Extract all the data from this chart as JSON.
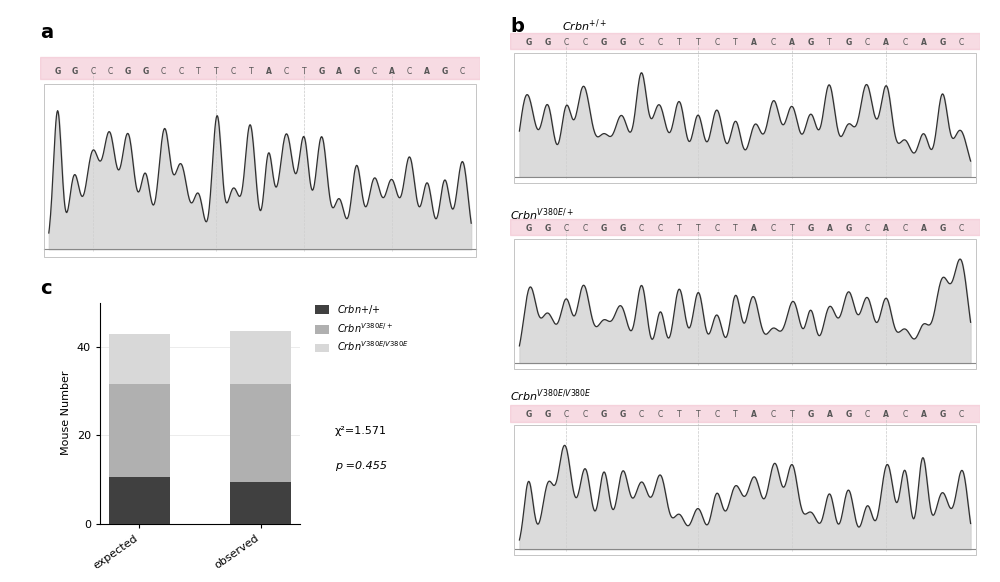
{
  "panel_a_sequence": "G G C C G G C C T T C T A C T G A G C A C A G C",
  "panel_b1_sequence": "G G C C G G C C T T C T A C A G T G C A C A G C",
  "panel_b2_sequence": "G G C C G G C C T T C T A C T G A G C A C A G C",
  "panel_b3_sequence": "G G C C G G C C T T C T A C T G A G C A C A G C",
  "bar_categories": [
    "expected",
    "observed"
  ],
  "bar_crbnpp": [
    10.5,
    9.5
  ],
  "bar_crbnhe": [
    21.0,
    22.0
  ],
  "bar_crbnhomo": [
    11.5,
    12.0
  ],
  "color_crbnpp": "#404040",
  "color_crbnhe": "#b0b0b0",
  "color_crbnhomo": "#d8d8d8",
  "ylabel": "Mouse Number",
  "chi2_text": "χ²=1.571",
  "p_text": "p =0.455",
  "yticks": [
    0,
    20,
    40
  ],
  "background_color": "#ffffff",
  "pink_color": "#f0b8c8",
  "vline_color": "#bbbbbb",
  "trace_fill_color": "#d0d0d0",
  "trace_line_color": "#303030",
  "base_label_color": "#555555",
  "border_color": "#bbbbbb"
}
